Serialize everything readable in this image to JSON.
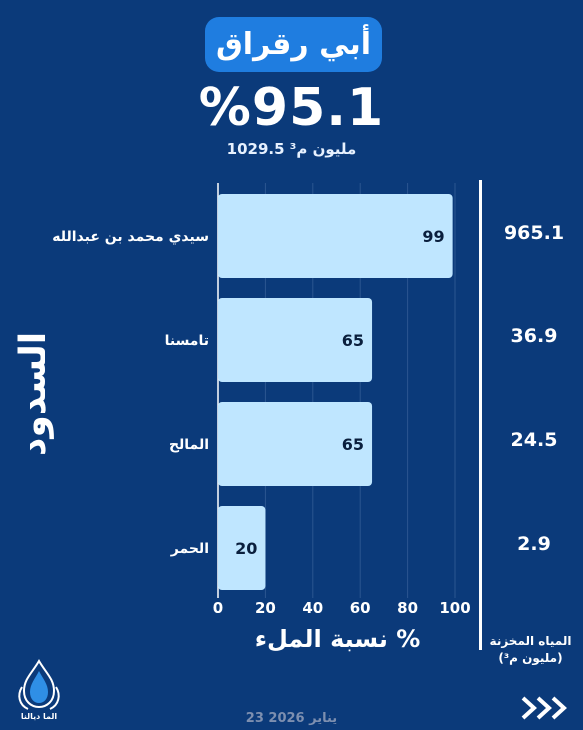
{
  "header": {
    "dam_name": "أبي رقراق",
    "fill_rate": "%95.1",
    "stored_volume": "1029.5 مليون م³"
  },
  "side_title": "السدود",
  "stored_column": {
    "title_line1": "المياه المخزنة",
    "title_line2": "(مليون م³)"
  },
  "footer": {
    "logo_text": "الما ديالنا",
    "date": "23 يناير 2026"
  },
  "colors": {
    "background": "#0b3a7a",
    "bar_fill": "#bfe6ff",
    "title_pill": "#1f7de0",
    "grid": "#2b5690"
  },
  "chart_data": {
    "type": "bar",
    "orientation": "horizontal",
    "categories": [
      "سيدي محمد بن عبدالله",
      "تامسنا",
      "المالح",
      "الحمر"
    ],
    "values": [
      99,
      65,
      65,
      20
    ],
    "data_labels": [
      "99",
      "65",
      "65",
      "20"
    ],
    "stored_volumes": [
      "965.1",
      "36.9",
      "24.5",
      "2.9"
    ],
    "xlabel": "نسبة الملء %",
    "xlim": [
      0,
      100
    ],
    "x_ticks": [
      "0",
      "20",
      "40",
      "60",
      "80",
      "100"
    ],
    "grid": true
  }
}
